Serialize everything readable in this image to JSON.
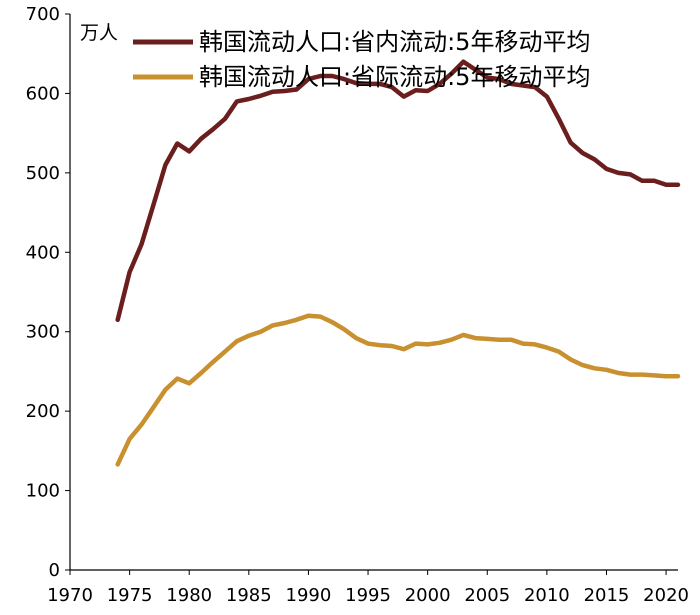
{
  "chart_data": {
    "type": "line",
    "title": "",
    "xlabel": "",
    "ylabel": "万人",
    "xlim": [
      1970,
      2021
    ],
    "ylim": [
      0,
      700
    ],
    "x_ticks": [
      1970,
      1975,
      1980,
      1985,
      1990,
      1995,
      2000,
      2005,
      2010,
      2015,
      2020
    ],
    "y_ticks": [
      0,
      100,
      200,
      300,
      400,
      500,
      600,
      700
    ],
    "legend_position": "top-right",
    "series": [
      {
        "name": "韩国流动人口:省内流动:5年移动平均",
        "color": "#6b1e1e",
        "x": [
          1974,
          1975,
          1976,
          1977,
          1978,
          1979,
          1980,
          1981,
          1982,
          1983,
          1984,
          1985,
          1986,
          1987,
          1988,
          1989,
          1990,
          1991,
          1992,
          1993,
          1994,
          1995,
          1996,
          1997,
          1998,
          1999,
          2000,
          2001,
          2002,
          2003,
          2004,
          2005,
          2006,
          2007,
          2008,
          2009,
          2010,
          2011,
          2012,
          2013,
          2014,
          2015,
          2016,
          2017,
          2018,
          2019,
          2020,
          2021
        ],
        "values": [
          315,
          375,
          410,
          460,
          510,
          537,
          527,
          543,
          555,
          568,
          590,
          593,
          597,
          602,
          603,
          605,
          618,
          622,
          622,
          618,
          613,
          612,
          612,
          608,
          596,
          604,
          603,
          612,
          625,
          640,
          630,
          620,
          618,
          612,
          610,
          608,
          596,
          568,
          538,
          525,
          517,
          505,
          500,
          498,
          490,
          490,
          485,
          485
        ]
      },
      {
        "name": "韩国流动人口:省际流动:5年移动平均",
        "color": "#c8902e",
        "x": [
          1974,
          1975,
          1976,
          1977,
          1978,
          1979,
          1980,
          1981,
          1982,
          1983,
          1984,
          1985,
          1986,
          1987,
          1988,
          1989,
          1990,
          1991,
          1992,
          1993,
          1994,
          1995,
          1996,
          1997,
          1998,
          1999,
          2000,
          2001,
          2002,
          2003,
          2004,
          2005,
          2006,
          2007,
          2008,
          2009,
          2010,
          2011,
          2012,
          2013,
          2014,
          2015,
          2016,
          2017,
          2018,
          2019,
          2020,
          2021
        ],
        "values": [
          133,
          165,
          183,
          205,
          227,
          241,
          235,
          248,
          262,
          275,
          288,
          295,
          300,
          308,
          311,
          315,
          320,
          319,
          312,
          303,
          292,
          285,
          283,
          282,
          278,
          285,
          284,
          286,
          290,
          296,
          292,
          291,
          290,
          290,
          285,
          284,
          280,
          275,
          265,
          258,
          254,
          252,
          248,
          246,
          246,
          245,
          244,
          244
        ]
      }
    ]
  }
}
